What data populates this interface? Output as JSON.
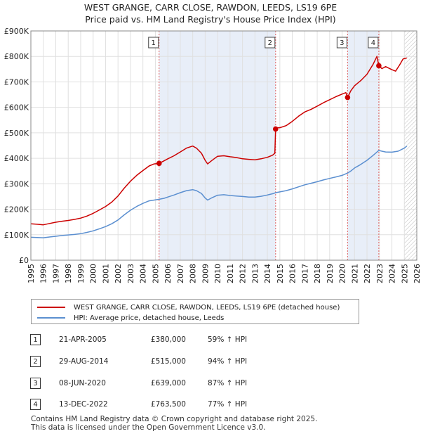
{
  "title_line1": "WEST GRANGE, CARR CLOSE, RAWDON, LEEDS, LS19 6PE",
  "title_line2": "Price paid vs. HM Land Registry's House Price Index (HPI)",
  "colors": {
    "property": "#cc0000",
    "hpi": "#5b8fd0",
    "band": "#e8eef8",
    "grid": "#e0e0e0",
    "vline": "#e06060"
  },
  "chart_data": {
    "type": "line",
    "xlim": [
      1995,
      2026
    ],
    "ylim": [
      0,
      900000
    ],
    "yticks": [
      {
        "value": 0,
        "label": "£0"
      },
      {
        "value": 100000,
        "label": "£100K"
      },
      {
        "value": 200000,
        "label": "£200K"
      },
      {
        "value": 300000,
        "label": "£300K"
      },
      {
        "value": 400000,
        "label": "£400K"
      },
      {
        "value": 500000,
        "label": "£500K"
      },
      {
        "value": 600000,
        "label": "£600K"
      },
      {
        "value": 700000,
        "label": "£700K"
      },
      {
        "value": 800000,
        "label": "£800K"
      },
      {
        "value": 900000,
        "label": "£900K"
      }
    ],
    "xticks": [
      1995,
      1996,
      1997,
      1998,
      1999,
      2000,
      2001,
      2002,
      2003,
      2004,
      2005,
      2006,
      2007,
      2008,
      2009,
      2010,
      2011,
      2012,
      2013,
      2014,
      2015,
      2016,
      2017,
      2018,
      2019,
      2020,
      2021,
      2022,
      2023,
      2024,
      2025,
      2026
    ],
    "bands": [
      [
        2005.3,
        2014.66
      ],
      [
        2020.44,
        2022.95
      ]
    ],
    "hatch_from": 2025.0,
    "series": [
      {
        "name": "WEST GRANGE, CARR CLOSE, RAWDON, LEEDS, LS19 6PE (detached house)",
        "color_key": "property",
        "points": [
          [
            1995.0,
            143000
          ],
          [
            1995.5,
            141000
          ],
          [
            1996.0,
            139000
          ],
          [
            1996.5,
            144000
          ],
          [
            1997.0,
            149000
          ],
          [
            1997.5,
            153000
          ],
          [
            1998.0,
            156000
          ],
          [
            1998.5,
            160000
          ],
          [
            1999.0,
            165000
          ],
          [
            1999.5,
            173000
          ],
          [
            2000.0,
            184000
          ],
          [
            2000.5,
            197000
          ],
          [
            2001.0,
            211000
          ],
          [
            2001.5,
            228000
          ],
          [
            2002.0,
            252000
          ],
          [
            2002.5,
            283000
          ],
          [
            2003.0,
            310000
          ],
          [
            2003.5,
            333000
          ],
          [
            2004.0,
            352000
          ],
          [
            2004.5,
            370000
          ],
          [
            2004.9,
            378000
          ],
          [
            2005.3,
            380000
          ],
          [
            2005.7,
            390000
          ],
          [
            2006.0,
            398000
          ],
          [
            2006.5,
            410000
          ],
          [
            2007.0,
            425000
          ],
          [
            2007.5,
            440000
          ],
          [
            2008.0,
            448000
          ],
          [
            2008.3,
            440000
          ],
          [
            2008.7,
            420000
          ],
          [
            2009.0,
            392000
          ],
          [
            2009.2,
            378000
          ],
          [
            2009.5,
            390000
          ],
          [
            2010.0,
            408000
          ],
          [
            2010.5,
            410000
          ],
          [
            2011.0,
            406000
          ],
          [
            2011.5,
            403000
          ],
          [
            2012.0,
            398000
          ],
          [
            2012.5,
            396000
          ],
          [
            2013.0,
            394000
          ],
          [
            2013.5,
            398000
          ],
          [
            2014.0,
            404000
          ],
          [
            2014.4,
            412000
          ],
          [
            2014.6,
            420000
          ],
          [
            2014.66,
            515000
          ],
          [
            2014.8,
            520000
          ],
          [
            2015.0,
            520000
          ],
          [
            2015.5,
            528000
          ],
          [
            2016.0,
            545000
          ],
          [
            2016.5,
            565000
          ],
          [
            2017.0,
            582000
          ],
          [
            2017.5,
            592000
          ],
          [
            2018.0,
            605000
          ],
          [
            2018.5,
            618000
          ],
          [
            2019.0,
            630000
          ],
          [
            2019.5,
            642000
          ],
          [
            2020.0,
            652000
          ],
          [
            2020.3,
            658000
          ],
          [
            2020.44,
            639000
          ],
          [
            2020.7,
            665000
          ],
          [
            2021.0,
            685000
          ],
          [
            2021.5,
            705000
          ],
          [
            2022.0,
            730000
          ],
          [
            2022.5,
            770000
          ],
          [
            2022.8,
            800000
          ],
          [
            2022.95,
            763500
          ],
          [
            2023.2,
            752000
          ],
          [
            2023.5,
            760000
          ],
          [
            2024.0,
            748000
          ],
          [
            2024.3,
            742000
          ],
          [
            2024.6,
            765000
          ],
          [
            2024.9,
            790000
          ],
          [
            2025.2,
            794000
          ]
        ]
      },
      {
        "name": "HPI: Average price, detached house, Leeds",
        "color_key": "hpi",
        "points": [
          [
            1995.0,
            90000
          ],
          [
            1995.5,
            89000
          ],
          [
            1996.0,
            88000
          ],
          [
            1996.5,
            91000
          ],
          [
            1997.0,
            94000
          ],
          [
            1997.5,
            97000
          ],
          [
            1998.0,
            99000
          ],
          [
            1998.5,
            101000
          ],
          [
            1999.0,
            104000
          ],
          [
            1999.5,
            109000
          ],
          [
            2000.0,
            115000
          ],
          [
            2000.5,
            123000
          ],
          [
            2001.0,
            132000
          ],
          [
            2001.5,
            143000
          ],
          [
            2002.0,
            158000
          ],
          [
            2002.5,
            178000
          ],
          [
            2003.0,
            196000
          ],
          [
            2003.5,
            211000
          ],
          [
            2004.0,
            223000
          ],
          [
            2004.5,
            233000
          ],
          [
            2005.0,
            237000
          ],
          [
            2005.3,
            239000
          ],
          [
            2005.7,
            243000
          ],
          [
            2006.0,
            248000
          ],
          [
            2006.5,
            256000
          ],
          [
            2007.0,
            265000
          ],
          [
            2007.5,
            273000
          ],
          [
            2008.0,
            277000
          ],
          [
            2008.3,
            273000
          ],
          [
            2008.7,
            262000
          ],
          [
            2009.0,
            244000
          ],
          [
            2009.2,
            236000
          ],
          [
            2009.5,
            244000
          ],
          [
            2010.0,
            255000
          ],
          [
            2010.5,
            257000
          ],
          [
            2011.0,
            254000
          ],
          [
            2011.5,
            252000
          ],
          [
            2012.0,
            250000
          ],
          [
            2012.5,
            248000
          ],
          [
            2013.0,
            248000
          ],
          [
            2013.5,
            251000
          ],
          [
            2014.0,
            256000
          ],
          [
            2014.5,
            262000
          ],
          [
            2014.66,
            265000
          ],
          [
            2015.0,
            268000
          ],
          [
            2015.5,
            273000
          ],
          [
            2016.0,
            280000
          ],
          [
            2016.5,
            288000
          ],
          [
            2017.0,
            296000
          ],
          [
            2017.5,
            302000
          ],
          [
            2018.0,
            308000
          ],
          [
            2018.5,
            315000
          ],
          [
            2019.0,
            321000
          ],
          [
            2019.5,
            327000
          ],
          [
            2020.0,
            333000
          ],
          [
            2020.44,
            342000
          ],
          [
            2020.7,
            350000
          ],
          [
            2021.0,
            362000
          ],
          [
            2021.5,
            376000
          ],
          [
            2022.0,
            392000
          ],
          [
            2022.5,
            412000
          ],
          [
            2022.95,
            431000
          ],
          [
            2023.2,
            428000
          ],
          [
            2023.5,
            425000
          ],
          [
            2024.0,
            424000
          ],
          [
            2024.5,
            428000
          ],
          [
            2025.0,
            440000
          ],
          [
            2025.2,
            448000
          ]
        ]
      }
    ],
    "markers": [
      {
        "num": "1",
        "x": 2005.3,
        "y": 380000
      },
      {
        "num": "2",
        "x": 2014.66,
        "y": 515000
      },
      {
        "num": "3",
        "x": 2020.44,
        "y": 639000
      },
      {
        "num": "4",
        "x": 2022.95,
        "y": 763500
      }
    ]
  },
  "legend": {
    "property_label": "WEST GRANGE, CARR CLOSE, RAWDON, LEEDS, LS19 6PE (detached house)",
    "hpi_label": "HPI: Average price, detached house, Leeds"
  },
  "transactions": [
    {
      "num": "1",
      "date": "21-APR-2005",
      "price": "£380,000",
      "hpi": "59% ↑ HPI"
    },
    {
      "num": "2",
      "date": "29-AUG-2014",
      "price": "£515,000",
      "hpi": "94% ↑ HPI"
    },
    {
      "num": "3",
      "date": "08-JUN-2020",
      "price": "£639,000",
      "hpi": "87% ↑ HPI"
    },
    {
      "num": "4",
      "date": "13-DEC-2022",
      "price": "£763,500",
      "hpi": "77% ↑ HPI"
    }
  ],
  "footer": {
    "line1": "Contains HM Land Registry data © Crown copyright and database right 2025.",
    "line2": "This data is licensed under the Open Government Licence v3.0."
  }
}
